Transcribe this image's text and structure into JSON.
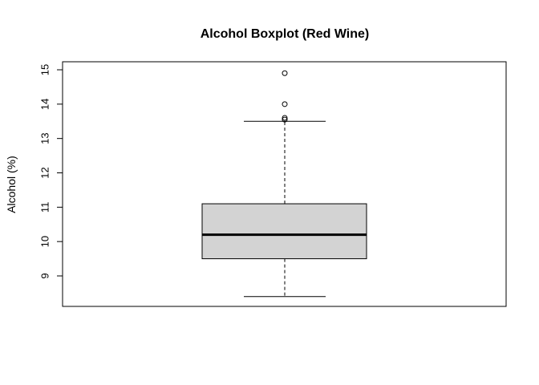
{
  "chart_data": {
    "type": "boxplot",
    "title": "Alcohol Boxplot (Red Wine)",
    "xlabel": "",
    "ylabel": "Alcohol (%)",
    "ylim": [
      8.1,
      15.1
    ],
    "y_ticks": [
      9,
      10,
      11,
      12,
      13,
      14,
      15
    ],
    "grid": false,
    "box_fill": "#d3d3d3",
    "series": [
      {
        "whisker_low": 8.4,
        "q1": 9.5,
        "median": 10.2,
        "q3": 11.1,
        "whisker_high": 13.5,
        "outliers": [
          13.55,
          13.6,
          14.0,
          14.9
        ]
      }
    ]
  }
}
